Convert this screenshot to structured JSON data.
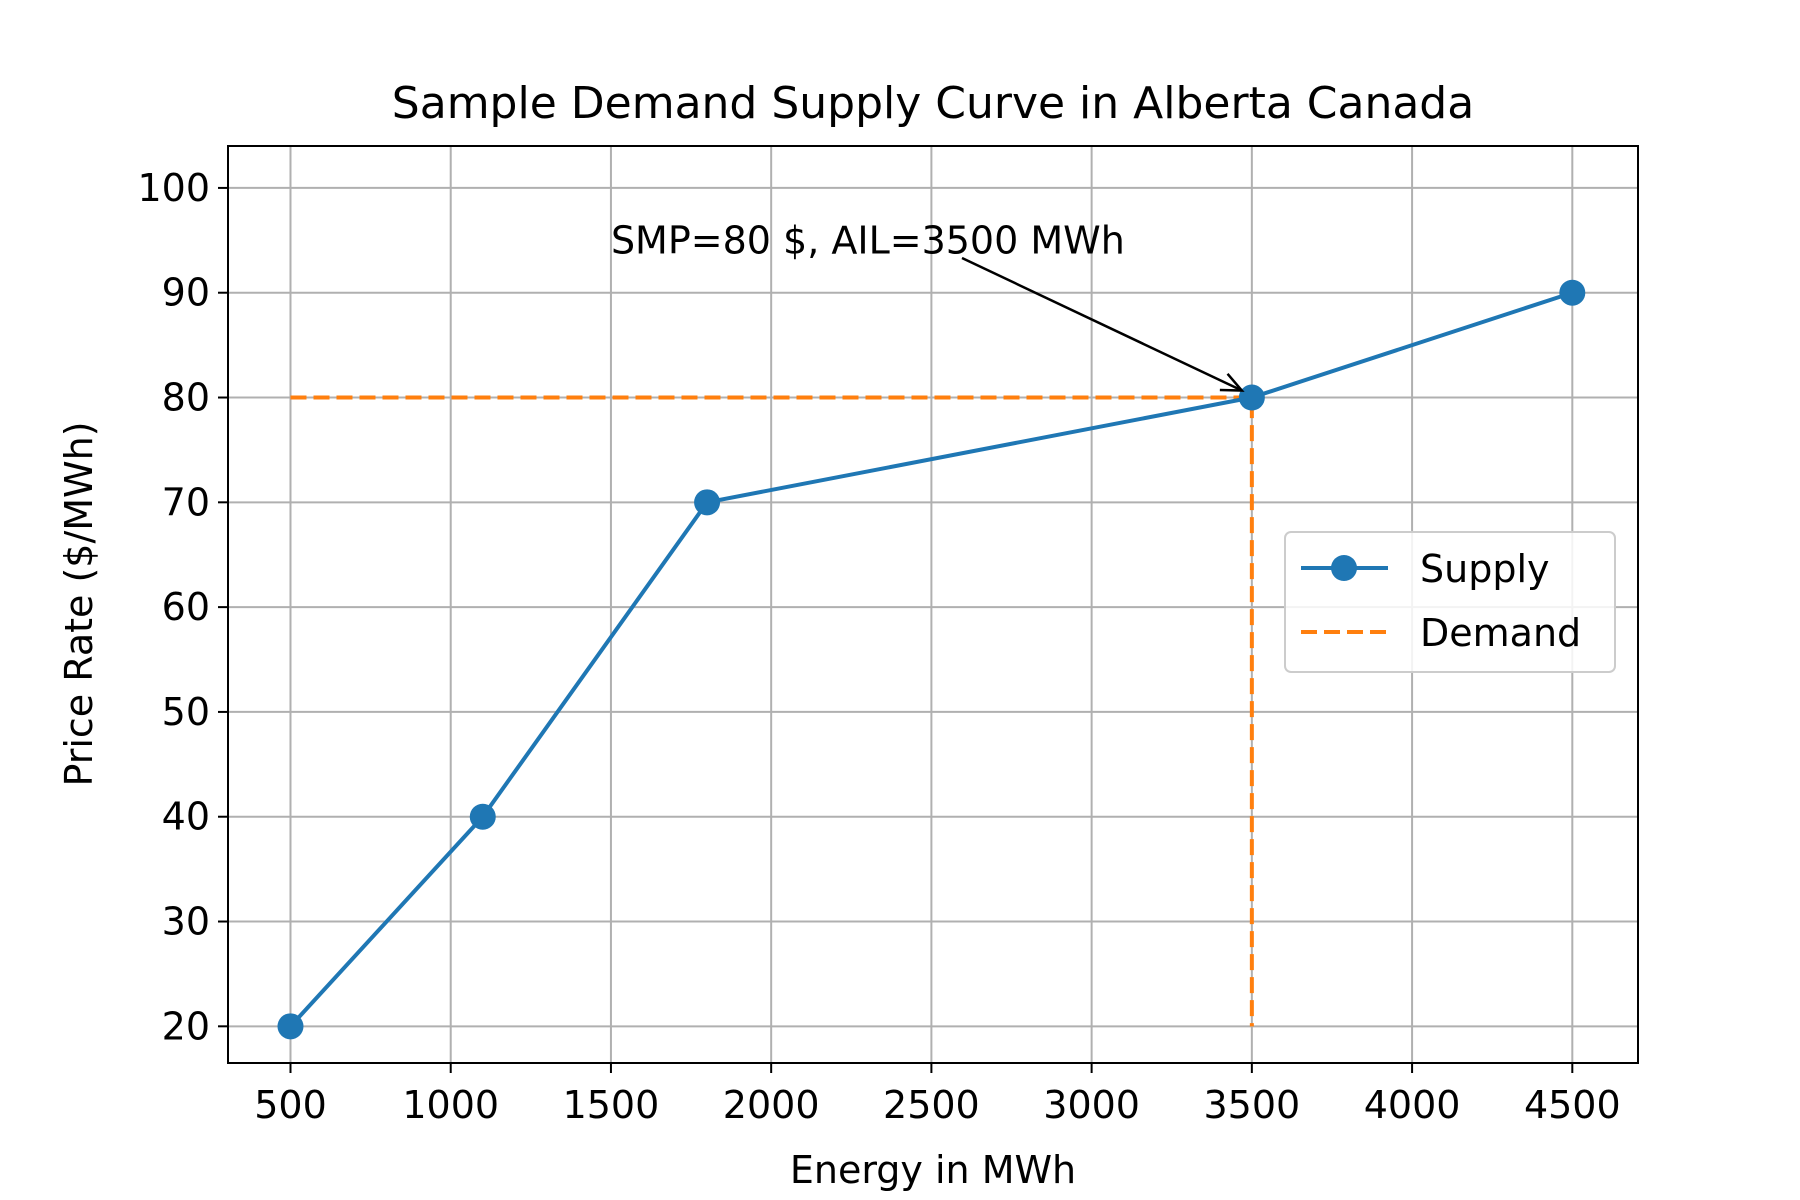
{
  "chart_data": {
    "type": "line",
    "title": "Sample Demand Supply Curve in Alberta Canada",
    "xlabel": "Energy in MWh",
    "ylabel": "Price Rate ($/MWh)",
    "xlim": [
      305,
      4705
    ],
    "ylim": [
      16.5,
      104
    ],
    "x_ticks": [
      500,
      1000,
      1500,
      2000,
      2500,
      3000,
      3500,
      4000,
      4500
    ],
    "y_ticks": [
      20,
      30,
      40,
      50,
      60,
      70,
      80,
      90,
      100
    ],
    "grid": true,
    "legend_position": "center-right",
    "series": [
      {
        "name": "Supply",
        "style": "solid-line-with-circle-markers",
        "color": "#1f77b4",
        "x": [
          500,
          1100,
          1800,
          3500,
          4500
        ],
        "y": [
          20,
          40,
          70,
          80,
          90
        ]
      },
      {
        "name": "Demand",
        "style": "dashed-line",
        "color": "#ff7f0e",
        "x": [
          500,
          3500,
          3500
        ],
        "y": [
          80,
          80,
          20
        ]
      }
    ],
    "annotations": [
      {
        "text": "SMP=80 $, AIL=3500 MWh",
        "text_x": 1500,
        "text_y": 95,
        "arrow_to_x": 3500,
        "arrow_to_y": 80
      }
    ]
  }
}
